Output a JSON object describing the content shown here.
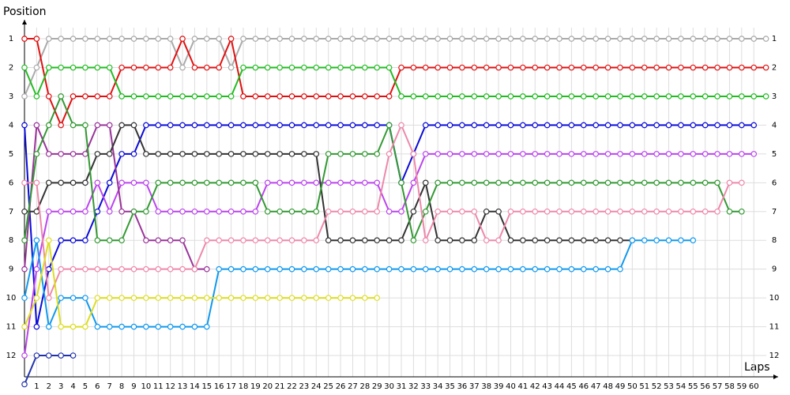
{
  "chart_data": {
    "type": "line",
    "y_label": "Position",
    "x_label": "Laps",
    "x": [
      0,
      1,
      2,
      3,
      4,
      5,
      6,
      7,
      8,
      9,
      10,
      11,
      12,
      13,
      14,
      15,
      16,
      17,
      18,
      19,
      20,
      21,
      22,
      23,
      24,
      25,
      26,
      27,
      28,
      29,
      30,
      31,
      32,
      33,
      34,
      35,
      36,
      37,
      38,
      39,
      40,
      41,
      42,
      43,
      44,
      45,
      46,
      47,
      48,
      49,
      50,
      51,
      52,
      53,
      54,
      55,
      56,
      57,
      58,
      59,
      60,
      61
    ],
    "xlim": [
      0,
      62
    ],
    "xticks": [
      1,
      2,
      3,
      4,
      5,
      6,
      7,
      8,
      9,
      10,
      11,
      12,
      13,
      14,
      15,
      16,
      17,
      18,
      19,
      20,
      21,
      22,
      23,
      24,
      25,
      26,
      27,
      28,
      29,
      30,
      31,
      32,
      33,
      34,
      35,
      36,
      37,
      38,
      39,
      40,
      41,
      42,
      43,
      44,
      45,
      46,
      47,
      48,
      49,
      50,
      51,
      52,
      53,
      54,
      55,
      56,
      57,
      58,
      59,
      60
    ],
    "ylim": [
      12.74,
      0.34
    ],
    "yticks": [
      1,
      2,
      3,
      4,
      5,
      6,
      7,
      8,
      9,
      10,
      11,
      12
    ],
    "grid": true,
    "series": [
      {
        "color": "#aaaaaa",
        "values": [
          3,
          2,
          1,
          1,
          1,
          1,
          1,
          1,
          1,
          1,
          1,
          1,
          1,
          2,
          1,
          1,
          1,
          2,
          1,
          1,
          1,
          1,
          1,
          1,
          1,
          1,
          1,
          1,
          1,
          1,
          1,
          1,
          1,
          1,
          1,
          1,
          1,
          1,
          1,
          1,
          1,
          1,
          1,
          1,
          1,
          1,
          1,
          1,
          1,
          1,
          1,
          1,
          1,
          1,
          1,
          1,
          1,
          1,
          1,
          1,
          1,
          1
        ]
      },
      {
        "color": "#e01010",
        "values": [
          1,
          1,
          3,
          4,
          3,
          3,
          3,
          3,
          2,
          2,
          2,
          2,
          2,
          1,
          2,
          2,
          2,
          1,
          3,
          3,
          3,
          3,
          3,
          3,
          3,
          3,
          3,
          3,
          3,
          3,
          3,
          2,
          2,
          2,
          2,
          2,
          2,
          2,
          2,
          2,
          2,
          2,
          2,
          2,
          2,
          2,
          2,
          2,
          2,
          2,
          2,
          2,
          2,
          2,
          2,
          2,
          2,
          2,
          2,
          2,
          2,
          2
        ]
      },
      {
        "color": "#22bb22",
        "values": [
          2,
          3,
          2,
          2,
          2,
          2,
          2,
          2,
          3,
          3,
          3,
          3,
          3,
          3,
          3,
          3,
          3,
          3,
          2,
          2,
          2,
          2,
          2,
          2,
          2,
          2,
          2,
          2,
          2,
          2,
          2,
          3,
          3,
          3,
          3,
          3,
          3,
          3,
          3,
          3,
          3,
          3,
          3,
          3,
          3,
          3,
          3,
          3,
          3,
          3,
          3,
          3,
          3,
          3,
          3,
          3,
          3,
          3,
          3,
          3,
          3,
          3
        ]
      },
      {
        "color": "#0a0ad8",
        "values": [
          4,
          11,
          9,
          8,
          8,
          8,
          7,
          6,
          5,
          5,
          4,
          4,
          4,
          4,
          4,
          4,
          4,
          4,
          4,
          4,
          4,
          4,
          4,
          4,
          4,
          4,
          4,
          4,
          4,
          4,
          4,
          6,
          5,
          4,
          4,
          4,
          4,
          4,
          4,
          4,
          4,
          4,
          4,
          4,
          4,
          4,
          4,
          4,
          4,
          4,
          4,
          4,
          4,
          4,
          4,
          4,
          4,
          4,
          4,
          4,
          4,
          null
        ]
      },
      {
        "color": "#bb44ee",
        "values": [
          12,
          9,
          7,
          7,
          7,
          7,
          6,
          7,
          6,
          6,
          6,
          7,
          7,
          7,
          7,
          7,
          7,
          7,
          7,
          7,
          6,
          6,
          6,
          6,
          6,
          6,
          6,
          6,
          6,
          6,
          7,
          7,
          6,
          5,
          5,
          5,
          5,
          5,
          5,
          5,
          5,
          5,
          5,
          5,
          5,
          5,
          5,
          5,
          5,
          5,
          5,
          5,
          5,
          5,
          5,
          5,
          5,
          5,
          5,
          5,
          5,
          null
        ]
      },
      {
        "color": "#993399",
        "values": [
          9,
          4,
          5,
          5,
          5,
          5,
          4,
          4,
          7,
          7,
          8,
          8,
          8,
          8,
          9,
          9,
          null,
          null,
          null,
          null,
          null,
          null,
          null,
          null,
          null,
          null,
          null,
          null,
          null,
          null,
          null,
          null,
          null,
          null,
          null,
          null,
          null,
          null,
          null,
          null,
          null,
          null,
          null,
          null,
          null,
          null,
          null,
          null,
          null,
          null,
          null,
          null,
          null,
          null,
          null,
          null,
          null,
          null,
          null,
          null,
          null,
          null
        ]
      },
      {
        "color": "#333333",
        "values": [
          7,
          7,
          6,
          6,
          6,
          6,
          5,
          5,
          4,
          4,
          5,
          5,
          5,
          5,
          5,
          5,
          5,
          5,
          5,
          5,
          5,
          5,
          5,
          5,
          5,
          8,
          8,
          8,
          8,
          8,
          8,
          8,
          7,
          6,
          8,
          8,
          8,
          8,
          7,
          7,
          8,
          8,
          8,
          8,
          8,
          8,
          8,
          8,
          8,
          8,
          8,
          null,
          null,
          null,
          null,
          null,
          null,
          null,
          null,
          null,
          null,
          null
        ]
      },
      {
        "color": "#339933",
        "values": [
          8,
          5,
          4,
          3,
          4,
          4,
          8,
          8,
          8,
          7,
          7,
          6,
          6,
          6,
          6,
          6,
          6,
          6,
          6,
          6,
          7,
          7,
          7,
          7,
          7,
          5,
          5,
          5,
          5,
          5,
          4,
          6,
          8,
          7,
          6,
          6,
          6,
          6,
          6,
          6,
          6,
          6,
          6,
          6,
          6,
          6,
          6,
          6,
          6,
          6,
          6,
          6,
          6,
          6,
          6,
          6,
          6,
          6,
          7,
          7,
          null,
          null
        ]
      },
      {
        "color": "#ee88aa",
        "values": [
          6,
          6,
          10,
          9,
          9,
          9,
          9,
          9,
          9,
          9,
          9,
          9,
          9,
          9,
          9,
          8,
          8,
          8,
          8,
          8,
          8,
          8,
          8,
          8,
          8,
          7,
          7,
          7,
          7,
          7,
          5,
          4,
          5,
          8,
          7,
          7,
          7,
          7,
          8,
          8,
          7,
          7,
          7,
          7,
          7,
          7,
          7,
          7,
          7,
          7,
          7,
          7,
          7,
          7,
          7,
          7,
          7,
          7,
          6,
          6,
          null,
          null
        ]
      },
      {
        "color": "#1199ee",
        "values": [
          10,
          8,
          11,
          10,
          10,
          10,
          11,
          11,
          11,
          11,
          11,
          11,
          11,
          11,
          11,
          11,
          9,
          9,
          9,
          9,
          9,
          9,
          9,
          9,
          9,
          9,
          9,
          9,
          9,
          9,
          9,
          9,
          9,
          9,
          9,
          9,
          9,
          9,
          9,
          9,
          9,
          9,
          9,
          9,
          9,
          9,
          9,
          9,
          9,
          9,
          8,
          8,
          8,
          8,
          8,
          8,
          null,
          null,
          null,
          null,
          null,
          null
        ]
      },
      {
        "color": "#dddd22",
        "values": [
          11,
          10,
          8,
          11,
          11,
          11,
          10,
          10,
          10,
          10,
          10,
          10,
          10,
          10,
          10,
          10,
          10,
          10,
          10,
          10,
          10,
          10,
          10,
          10,
          10,
          10,
          10,
          10,
          10,
          10,
          null,
          null,
          null,
          null,
          null,
          null,
          null,
          null,
          null,
          null,
          null,
          null,
          null,
          null,
          null,
          null,
          null,
          null,
          null,
          null,
          null,
          null,
          null,
          null,
          null,
          null,
          null,
          null,
          null,
          null,
          null,
          null
        ]
      },
      {
        "color": "#2233aa",
        "values": [
          13,
          12,
          12,
          12,
          12,
          null,
          null,
          null,
          null,
          null,
          null,
          null,
          null,
          null,
          null,
          null,
          null,
          null,
          null,
          null,
          null,
          null,
          null,
          null,
          null,
          null,
          null,
          null,
          null,
          null,
          null,
          null,
          null,
          null,
          null,
          null,
          null,
          null,
          null,
          null,
          null,
          null,
          null,
          null,
          null,
          null,
          null,
          null,
          null,
          null,
          null,
          null,
          null,
          null,
          null,
          null,
          null,
          null,
          null,
          null,
          null,
          null
        ]
      }
    ]
  }
}
